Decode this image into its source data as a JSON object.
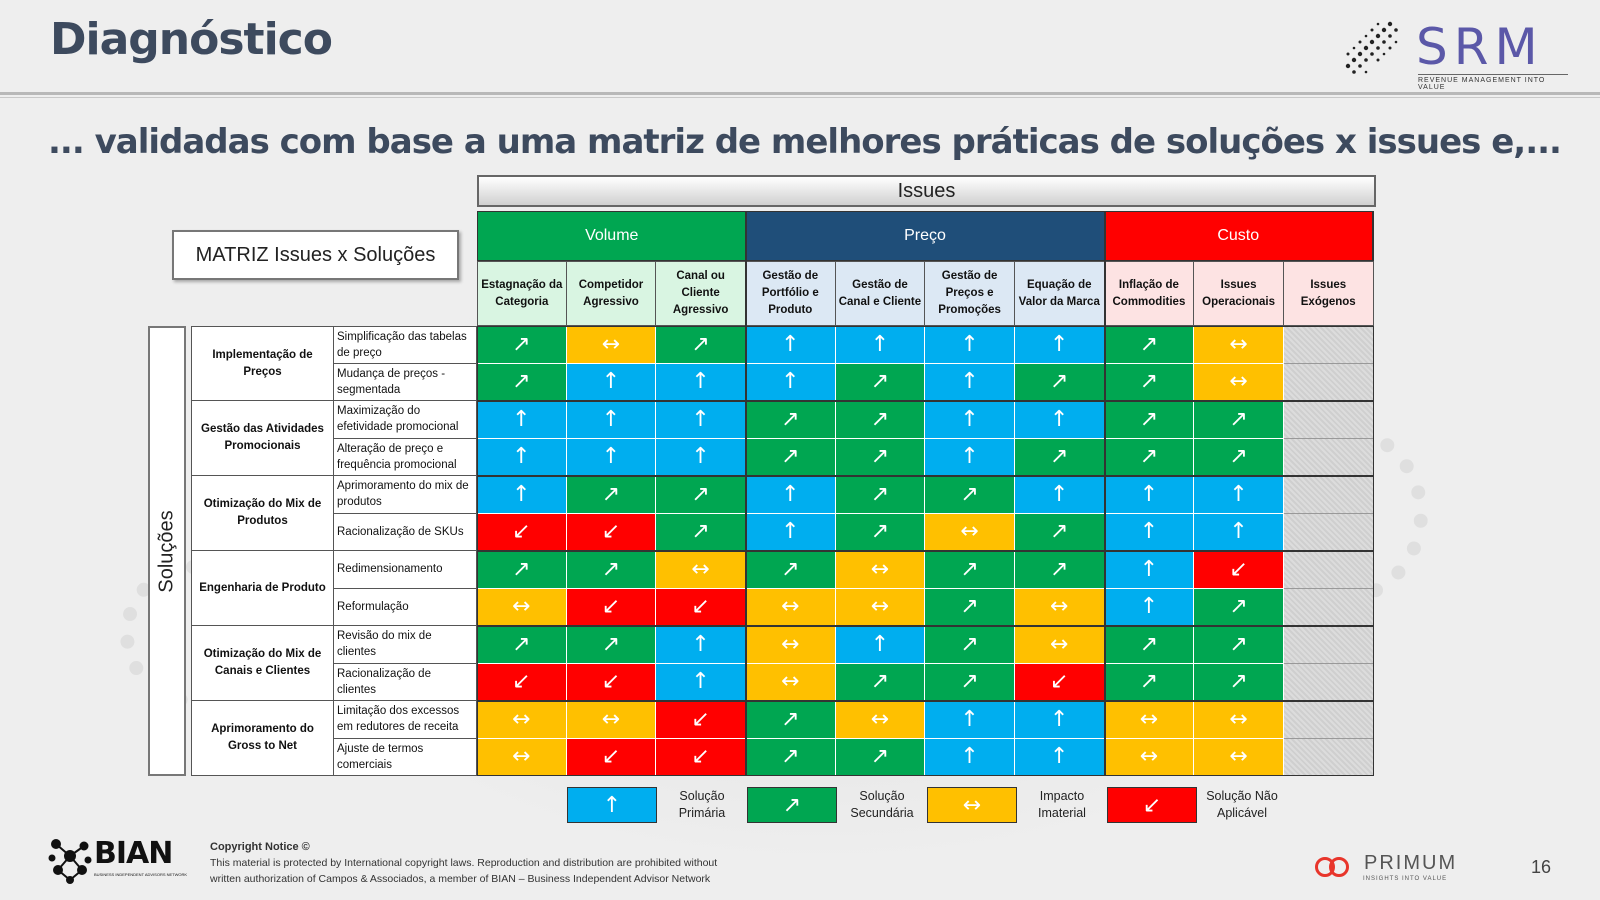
{
  "title": "Diagnóstico",
  "subtitle": "... validadas com base a uma matriz de melhores práticas de soluções x issues e,...",
  "logo_srm": {
    "name": "SRM",
    "tagline": "REVENUE MANAGEMENT INTO VALUE"
  },
  "issues_label": "Issues",
  "matrix_title": "MATRIZ Issues x Soluções",
  "solucoes_label": "Soluções",
  "issue_groups": [
    {
      "label": "Volume",
      "span": 3,
      "color": "#00a651"
    },
    {
      "label": "Preço",
      "span": 4,
      "color": "#1f4e79"
    },
    {
      "label": "Custo",
      "span": 3,
      "color": "#ff0000"
    }
  ],
  "columns": [
    {
      "label": "Estagnação da Categoria",
      "bg": "#d9f5e2"
    },
    {
      "label": "Competidor Agressivo",
      "bg": "#d9f5e2"
    },
    {
      "label": "Canal ou Cliente Agressivo",
      "bg": "#d9f5e2"
    },
    {
      "label": "Gestão de Portfólio e Produto",
      "bg": "#dce8f4"
    },
    {
      "label": "Gestão de Canal e Cliente",
      "bg": "#dce8f4"
    },
    {
      "label": "Gestão de Preços e Promoções",
      "bg": "#dce8f4"
    },
    {
      "label": "Equação de Valor da Marca",
      "bg": "#dce8f4"
    },
    {
      "label": "Inflação de Commodities",
      "bg": "#fde3e3"
    },
    {
      "label": "Issues Operacionais",
      "bg": "#fde3e3"
    },
    {
      "label": "Issues Exógenos",
      "bg": "#fde3e3"
    }
  ],
  "row_groups": [
    "Implementação de Preços",
    "Gestão das Atividades Promocionais",
    "Otimização do Mix de Produtos",
    "Engenharia de Produto",
    "Otimização do Mix de Canais e Clientes",
    "Aprimoramento do Gross to Net"
  ],
  "rows": [
    {
      "label": "Simplificação das tabelas de preço",
      "cells": [
        "S",
        "I",
        "S",
        "P",
        "P",
        "P",
        "P",
        "S",
        "I",
        "N"
      ]
    },
    {
      "label": "Mudança de preços - segmentada",
      "cells": [
        "S",
        "P",
        "P",
        "P",
        "S",
        "P",
        "S",
        "S",
        "I",
        "N"
      ]
    },
    {
      "label": "Maximização do efetividade promocional",
      "cells": [
        "P",
        "P",
        "P",
        "S",
        "S",
        "P",
        "P",
        "S",
        "S",
        "N"
      ]
    },
    {
      "label": "Alteração de preço e frequência promocional",
      "cells": [
        "P",
        "P",
        "P",
        "S",
        "S",
        "P",
        "S",
        "S",
        "S",
        "N"
      ]
    },
    {
      "label": "Aprimoramento do mix de produtos",
      "cells": [
        "P",
        "S",
        "S",
        "P",
        "S",
        "S",
        "P",
        "P",
        "P",
        "N"
      ]
    },
    {
      "label": "Racionalização de SKUs",
      "cells": [
        "X",
        "X",
        "S",
        "P",
        "S",
        "I",
        "S",
        "P",
        "P",
        "N"
      ]
    },
    {
      "label": "Redimensionamento",
      "cells": [
        "S",
        "S",
        "I",
        "S",
        "I",
        "S",
        "S",
        "P",
        "X",
        "N"
      ]
    },
    {
      "label": "Reformulação",
      "cells": [
        "I",
        "X",
        "X",
        "I",
        "I",
        "S",
        "I",
        "P",
        "S",
        "N"
      ]
    },
    {
      "label": "Revisão do mix de clientes",
      "cells": [
        "S",
        "S",
        "P",
        "I",
        "P",
        "S",
        "I",
        "S",
        "S",
        "N"
      ]
    },
    {
      "label": "Racionalização de clientes",
      "cells": [
        "X",
        "X",
        "P",
        "I",
        "S",
        "S",
        "X",
        "S",
        "S",
        "N"
      ]
    },
    {
      "label": "Limitação dos excessos em redutores de receita",
      "cells": [
        "I",
        "I",
        "X",
        "S",
        "I",
        "P",
        "P",
        "I",
        "I",
        "N"
      ]
    },
    {
      "label": "Ajuste de termos comerciais",
      "cells": [
        "I",
        "X",
        "X",
        "S",
        "S",
        "P",
        "P",
        "I",
        "I",
        "N"
      ]
    }
  ],
  "legend": [
    {
      "key": "P",
      "label": "Solução Primária",
      "color": "#00aeef",
      "icon": "up-arrow-icon",
      "glyph": "↑"
    },
    {
      "key": "S",
      "label": "Solução Secundária",
      "color": "#00a651",
      "icon": "diagonal-up-arrow-icon",
      "glyph": "↗"
    },
    {
      "key": "I",
      "label": "Impacto Imaterial",
      "color": "#ffc000",
      "icon": "horizontal-arrow-icon",
      "glyph": "↔"
    },
    {
      "key": "X",
      "label": "Solução Não Aplicável",
      "color": "#ff0000",
      "icon": "diagonal-down-arrow-icon",
      "glyph": "↙"
    }
  ],
  "footer": {
    "bian_logo": "BIAN",
    "bian_tagline": "BUSINESS INDEPENDENT ADVISORS NETWORK",
    "copyright_title": "Copyright Notice ©",
    "copyright_line1": "This material is protected by International copyright laws. Reproduction and distribution are prohibited without",
    "copyright_line2": "written authorization of Campos & Associados, a member of BIAN – Business Independent Advisor Network",
    "primum_logo": "PRIMUM",
    "primum_tagline": "INSIGHTS INTO VALUE",
    "page_number": "16"
  }
}
